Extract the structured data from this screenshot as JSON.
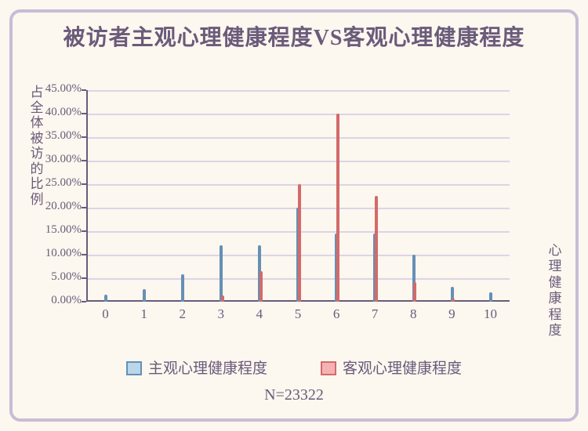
{
  "chart": {
    "type": "bar",
    "title": "被访者主观心理健康程度VS客观心理健康程度",
    "x_axis_label": "心理健康程度",
    "y_axis_label": "占全体被访的比例",
    "categories": [
      "0",
      "1",
      "2",
      "3",
      "4",
      "5",
      "6",
      "7",
      "8",
      "9",
      "10"
    ],
    "series": [
      {
        "name": "主观心理健康程度",
        "values": [
          1.5,
          2.7,
          5.8,
          12.0,
          12.0,
          20.0,
          14.5,
          14.5,
          10.0,
          3.2,
          2.0
        ],
        "fill_color": "#bad6ea",
        "border_color": "#6590b5"
      },
      {
        "name": "客观心理健康程度",
        "values": [
          0,
          0,
          0,
          1.3,
          6.5,
          25.0,
          40.0,
          22.5,
          4.2,
          0.5,
          0
        ],
        "fill_color": "#f4b3b3",
        "border_color": "#d46a6a"
      }
    ],
    "ylim": [
      0,
      45
    ],
    "ytick_step": 5,
    "ytick_format": "{v}.00%",
    "grid_color": "#ddd4e6",
    "axis_color": "#6a5b7a",
    "text_color": "#6a5b7a",
    "background_color": "#fcf7ef",
    "frame_border_color": "#c8bcd6",
    "title_fontsize": 28,
    "label_fontsize": 17,
    "legend_fontsize": 19,
    "bar_width": 0.38,
    "bar_gap": 0.02
  },
  "footer": {
    "sample_size_label": "N=23322"
  }
}
